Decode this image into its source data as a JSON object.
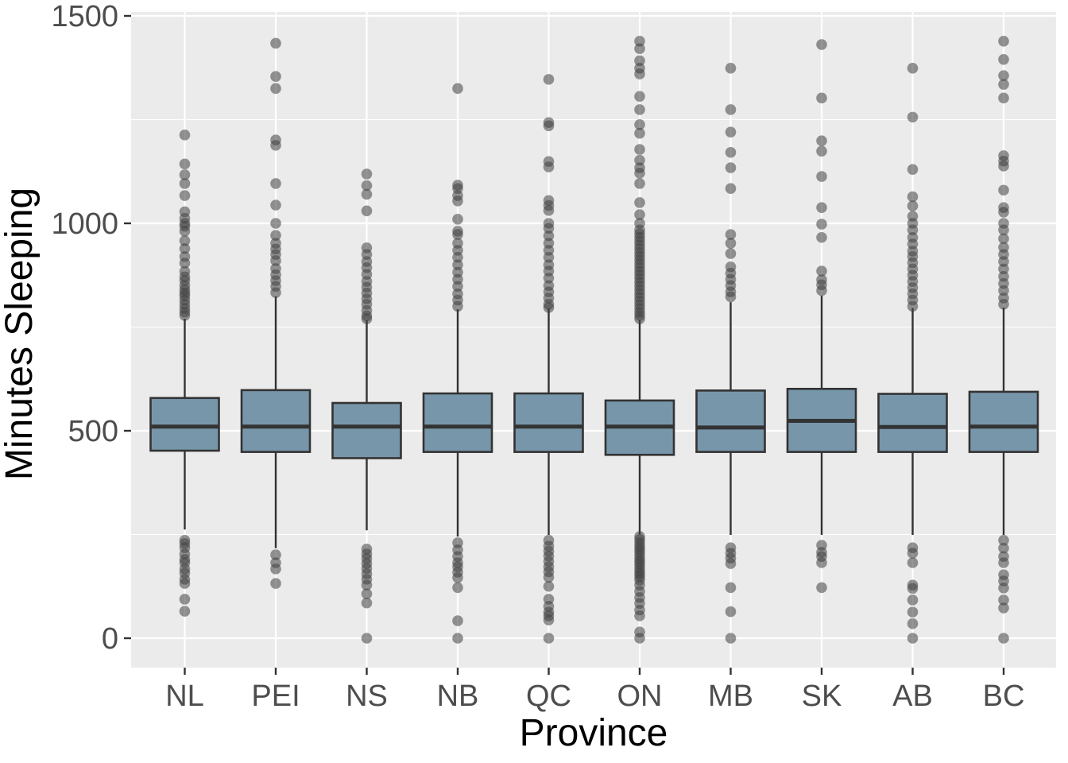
{
  "chart_data": {
    "type": "boxplot",
    "title": "",
    "xlabel": "Province",
    "ylabel": "Minutes Sleeping",
    "categories": [
      "NL",
      "PEI",
      "NS",
      "NB",
      "QC",
      "ON",
      "MB",
      "SK",
      "AB",
      "BC"
    ],
    "y_ticks": [
      0,
      500,
      1000,
      1500
    ],
    "y_minor_gridlines": [
      250,
      750,
      1250
    ],
    "ylim": [
      -70,
      1510
    ],
    "grid": "on",
    "legend": "none",
    "series": [
      {
        "label": "NL",
        "whisker_low": 262,
        "q1": 452,
        "median": 510,
        "q3": 579,
        "whisker_high": 770,
        "outliers_high": [
          778,
          786,
          795,
          805,
          815,
          825,
          832,
          840,
          850,
          862,
          871,
          884,
          904,
          920,
          939,
          958,
          981,
          993,
          1000,
          1012,
          1028,
          1067,
          1096,
          1117,
          1143,
          1213
        ],
        "outliers_low": [
          236,
          228,
          218,
          203,
          190,
          182,
          167,
          157,
          142,
          132,
          94,
          65
        ]
      },
      {
        "label": "PEI",
        "whisker_low": 217,
        "q1": 449,
        "median": 510,
        "q3": 598,
        "whisker_high": 824,
        "outliers_high": [
          833,
          848,
          862,
          876,
          891,
          910,
          925,
          938,
          952,
          971,
          1000,
          1044,
          1096,
          1188,
          1201,
          1325,
          1354,
          1434
        ],
        "outliers_low": [
          201,
          182,
          167,
          132
        ]
      },
      {
        "label": "NS",
        "whisker_low": 260,
        "q1": 434,
        "median": 510,
        "q3": 567,
        "whisker_high": 766,
        "outliers_high": [
          770,
          777,
          790,
          805,
          818,
          832,
          846,
          860,
          877,
          893,
          908,
          925,
          941,
          1030,
          1070,
          1091,
          1119
        ],
        "outliers_low": [
          215,
          203,
          192,
          180,
          168,
          155,
          142,
          128,
          107,
          85,
          0
        ]
      },
      {
        "label": "NB",
        "whisker_low": 245,
        "q1": 449,
        "median": 510,
        "q3": 590,
        "whisker_high": 793,
        "outliers_high": [
          800,
          815,
          830,
          848,
          865,
          882,
          900,
          918,
          935,
          952,
          973,
          981,
          1010,
          1054,
          1067,
          1084,
          1092,
          1325
        ],
        "outliers_low": [
          230,
          213,
          197,
          182,
          172,
          159,
          146,
          122,
          42,
          0
        ]
      },
      {
        "label": "QC",
        "whisker_low": 249,
        "q1": 449,
        "median": 510,
        "q3": 590,
        "whisker_high": 795,
        "outliers_high": [
          797,
          805,
          820,
          835,
          850,
          868,
          885,
          900,
          918,
          935,
          952,
          970,
          988,
          1000,
          1031,
          1043,
          1055,
          1136,
          1149,
          1235,
          1243,
          1347
        ],
        "outliers_low": [
          236,
          222,
          210,
          198,
          185,
          172,
          160,
          147,
          125,
          94,
          77,
          63,
          54,
          44,
          0
        ]
      },
      {
        "label": "ON",
        "whisker_low": 250,
        "q1": 442,
        "median": 510,
        "q3": 573,
        "whisker_high": 767,
        "outliers_high": [
          770,
          778,
          786,
          795,
          804,
          813,
          822,
          831,
          840,
          849,
          858,
          867,
          876,
          885,
          894,
          903,
          912,
          921,
          930,
          939,
          948,
          957,
          966,
          975,
          984,
          1000,
          1021,
          1050,
          1096,
          1121,
          1134,
          1152,
          1178,
          1217,
          1238,
          1274,
          1306,
          1360,
          1374,
          1392,
          1421,
          1439
        ],
        "outliers_low": [
          245,
          238,
          230,
          222,
          215,
          208,
          200,
          192,
          185,
          178,
          170,
          162,
          155,
          148,
          140,
          128,
          113,
          98,
          84,
          68,
          54,
          15,
          0
        ]
      },
      {
        "label": "MB",
        "whisker_low": 249,
        "q1": 449,
        "median": 508,
        "q3": 597,
        "whisker_high": 810,
        "outliers_high": [
          823,
          835,
          850,
          865,
          880,
          895,
          927,
          952,
          973,
          1084,
          1134,
          1171,
          1220,
          1274,
          1374
        ],
        "outliers_low": [
          218,
          205,
          193,
          180,
          122,
          64,
          0
        ]
      },
      {
        "label": "SK",
        "whisker_low": 249,
        "q1": 449,
        "median": 524,
        "q3": 601,
        "whisker_high": 826,
        "outliers_high": [
          838,
          852,
          864,
          885,
          966,
          998,
          1038,
          1113,
          1174,
          1199,
          1302,
          1431
        ],
        "outliers_low": [
          224,
          207,
          197,
          182,
          122
        ]
      },
      {
        "label": "AB",
        "whisker_low": 249,
        "q1": 449,
        "median": 509,
        "q3": 589,
        "whisker_high": 796,
        "outliers_high": [
          800,
          815,
          830,
          845,
          860,
          875,
          890,
          905,
          920,
          933,
          950,
          966,
          984,
          1000,
          1017,
          1042,
          1064,
          1130,
          1256,
          1374
        ],
        "outliers_low": [
          218,
          205,
          182,
          128,
          120,
          92,
          63,
          35,
          0
        ]
      },
      {
        "label": "BC",
        "whisker_low": 249,
        "q1": 449,
        "median": 510,
        "q3": 594,
        "whisker_high": 797,
        "outliers_high": [
          805,
          820,
          838,
          855,
          872,
          890,
          908,
          925,
          942,
          963,
          984,
          1000,
          1027,
          1038,
          1080,
          1138,
          1150,
          1163,
          1302,
          1335,
          1356,
          1395,
          1439
        ],
        "outliers_low": [
          236,
          217,
          197,
          182,
          153,
          138,
          121,
          92,
          73,
          0
        ]
      }
    ],
    "colors": {
      "panel_background": "#EBEBEB",
      "gridline": "#FFFFFF",
      "box_fill": "#7896AA",
      "box_stroke": "#333333",
      "outlier_dot": "#404040",
      "tick_label": "#4D4D4D",
      "axis_title": "#000000",
      "tick_mark": "#333333"
    }
  }
}
